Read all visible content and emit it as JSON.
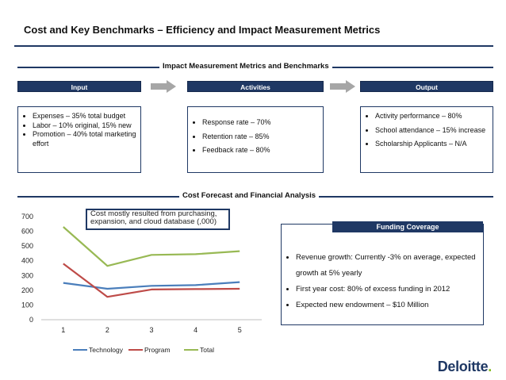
{
  "slide": {
    "title": "Cost and Key Benchmarks – Efficiency and Impact Measurement Metrics"
  },
  "impact_section": {
    "heading": "Impact Measurement Metrics and Benchmarks",
    "phases": [
      "Input",
      "Activities",
      "Output"
    ],
    "input_bullets": [
      "Expenses – 35%  total budget",
      "Labor – 10%  original, 15% new",
      "Promotion – 40% total marketing effort"
    ],
    "activities_bullets": [
      "Response rate – 70%",
      "Retention rate – 85%",
      "Feedback rate – 80%"
    ],
    "output_bullets": [
      "Activity performance – 80%",
      "School attendance – 15% increase",
      "Scholarship Applicants – N/A"
    ]
  },
  "forecast_section": {
    "heading": "Cost Forecast and Financial Analysis",
    "callout": "Cost mostly resulted from purchasing, expansion, and cloud database (,000)"
  },
  "chart_data": {
    "type": "line",
    "x": [
      1,
      2,
      3,
      4,
      5
    ],
    "series": [
      {
        "name": "Technology",
        "values": [
          250,
          210,
          230,
          235,
          255
        ],
        "color": "#4a7ebb"
      },
      {
        "name": "Program",
        "values": [
          380,
          155,
          205,
          208,
          210
        ],
        "color": "#be4b48"
      },
      {
        "name": "Total",
        "values": [
          630,
          365,
          440,
          445,
          465
        ],
        "color": "#98b954"
      }
    ],
    "ylim": [
      0,
      700
    ],
    "yticks": [
      0,
      100,
      200,
      300,
      400,
      500,
      600,
      700
    ],
    "grid": false,
    "legend": "bottom",
    "title": "",
    "xlabel": "",
    "ylabel": ""
  },
  "funding": {
    "heading": "Funding Coverage",
    "bullets": [
      "Revenue growth: Currently -3% on average, expected growth at 5% yearly",
      "First year cost: 80% of excess funding in 2012",
      "Expected new endowment – $10 Million"
    ]
  },
  "brand": {
    "name": "Deloitte",
    "dot": ".",
    "primary_color": "#1f3864",
    "accent_color": "#86bc25"
  }
}
